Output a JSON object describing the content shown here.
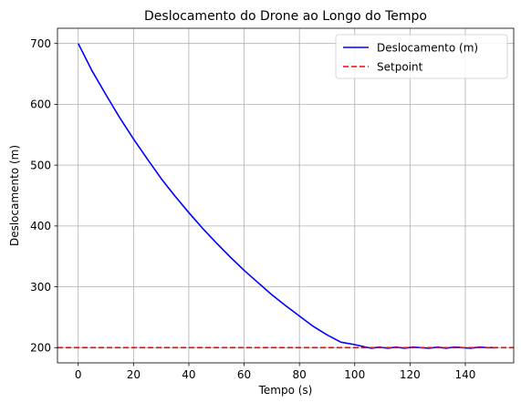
{
  "chart_data": {
    "type": "line",
    "title": "Deslocamento do Drone ao Longo do Tempo",
    "xlabel": "Tempo (s)",
    "ylabel": "Deslocamento (m)",
    "xlim": [
      -7.5,
      157.5
    ],
    "ylim": [
      175,
      725
    ],
    "xticks": [
      0,
      20,
      40,
      60,
      80,
      100,
      120,
      140
    ],
    "yticks": [
      200,
      300,
      400,
      500,
      600,
      700
    ],
    "grid": true,
    "legend_position": "top-right",
    "series": [
      {
        "name": "Deslocamento (m)",
        "color": "#0000ff",
        "style": "solid",
        "x": [
          0,
          5,
          10,
          15,
          20,
          25,
          30,
          35,
          40,
          45,
          50,
          55,
          60,
          65,
          70,
          75,
          80,
          85,
          90,
          95,
          100,
          103,
          106,
          109,
          112,
          115,
          118,
          121,
          124,
          127,
          130,
          133,
          136,
          139,
          142,
          145,
          148,
          151
        ],
        "y": [
          700,
          655,
          616,
          578,
          543,
          510,
          478,
          449,
          422,
          396,
          372,
          349,
          327,
          307,
          287,
          269,
          252,
          235,
          221,
          209,
          205,
          202,
          199,
          201,
          199,
          201,
          199,
          201,
          200,
          199,
          201,
          199,
          201,
          200,
          199,
          201,
          200,
          200
        ]
      },
      {
        "name": "Setpoint",
        "color": "#ff0000",
        "style": "dashed",
        "constant": 200
      }
    ]
  }
}
